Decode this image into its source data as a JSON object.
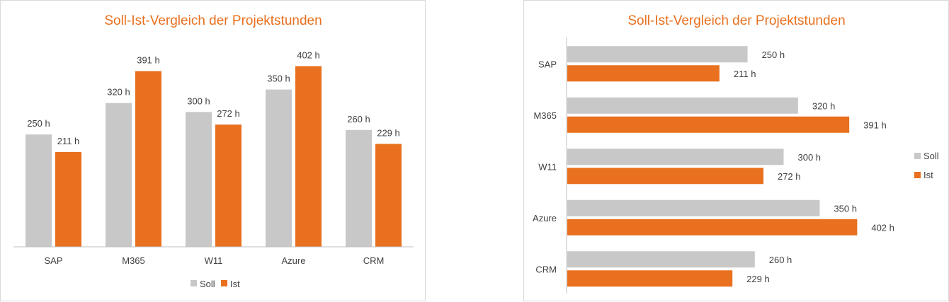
{
  "chart_data": [
    {
      "type": "bar",
      "orientation": "vertical",
      "title": "Soll-Ist-Vergleich der Projektstunden",
      "categories": [
        "SAP",
        "M365",
        "W11",
        "Azure",
        "CRM"
      ],
      "series": [
        {
          "name": "Soll",
          "values": [
            250,
            320,
            300,
            350,
            260
          ],
          "labels": [
            "250 h",
            "320 h",
            "300 h",
            "350 h",
            "260 h"
          ],
          "color": "#c8c8c8"
        },
        {
          "name": "Ist",
          "values": [
            211,
            391,
            272,
            402,
            229
          ],
          "labels": [
            "211 h",
            "391 h",
            "272 h",
            "402 h",
            "229 h"
          ],
          "color": "#e8701e"
        }
      ],
      "ylim": [
        0,
        450
      ],
      "grid": false,
      "legend": "bottom"
    },
    {
      "type": "bar",
      "orientation": "horizontal",
      "title": "Soll-Ist-Vergleich der Projektstunden",
      "categories": [
        "SAP",
        "M365",
        "W11",
        "Azure",
        "CRM"
      ],
      "series": [
        {
          "name": "Soll",
          "values": [
            250,
            320,
            300,
            350,
            260
          ],
          "labels": [
            "250 h",
            "320 h",
            "300 h",
            "350 h",
            "260 h"
          ],
          "color": "#c8c8c8"
        },
        {
          "name": "Ist",
          "values": [
            211,
            391,
            272,
            402,
            229
          ],
          "labels": [
            "211 h",
            "391 h",
            "272 h",
            "402 h",
            "229 h"
          ],
          "color": "#e8701e"
        }
      ],
      "xlim": [
        0,
        450
      ],
      "grid": false,
      "legend": "right"
    }
  ],
  "colors": {
    "title": "#e8701e",
    "soll": "#c8c8c8",
    "ist": "#e8701e",
    "axis": "#bfbfbf"
  }
}
